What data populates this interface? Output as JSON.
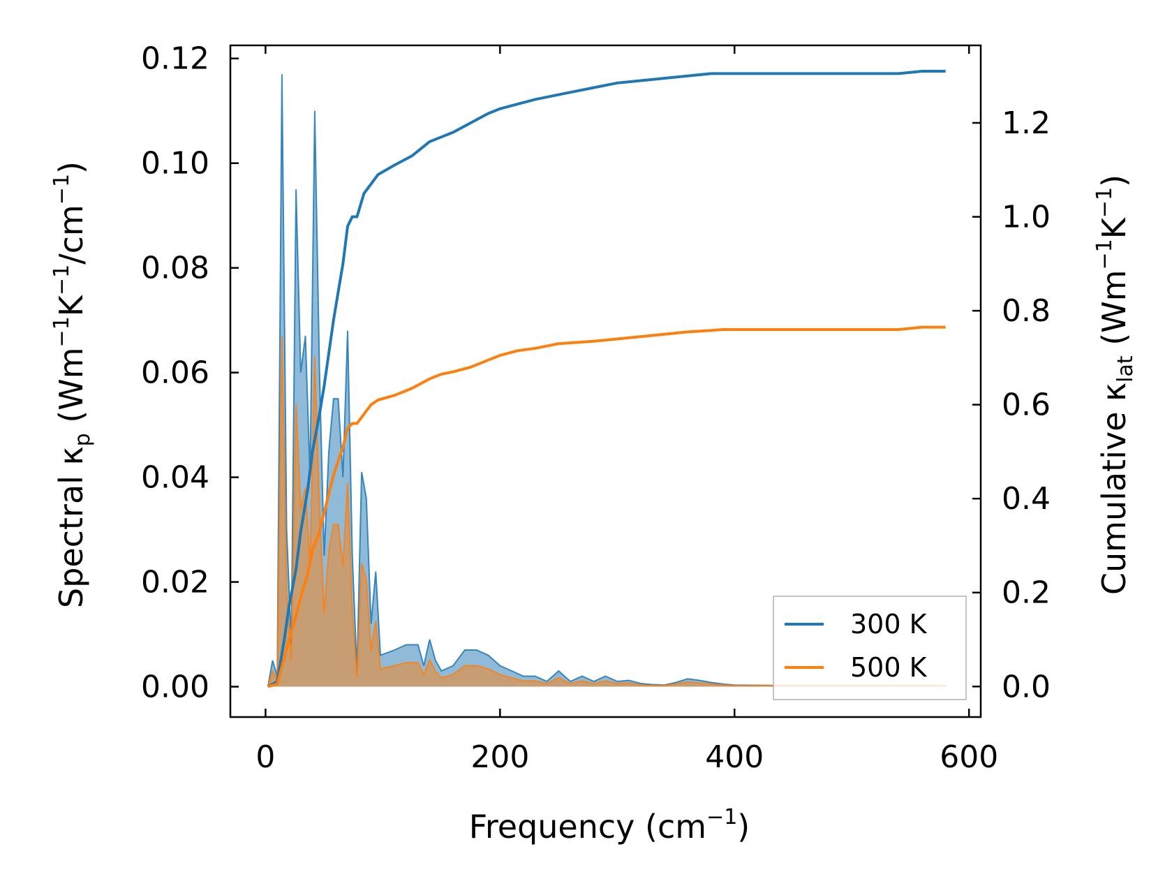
{
  "chart_data": {
    "type": "line",
    "xlabel": {
      "main": "Frequency (cm",
      "sup": "−1",
      "tail": ")"
    },
    "ylabel_left": {
      "a": "Spectral κ",
      "a_sub": "p",
      "b": " (Wm",
      "b_sup": "−1",
      "c": "K",
      "c_sup": "−1",
      "d": "/cm",
      "d_sup": "−1",
      "e": ")"
    },
    "ylabel_right": {
      "a": "Cumulative κ",
      "a_sub": "lat",
      "b": " (Wm",
      "b_sup": "−1",
      "c": "K",
      "c_sup": "−1",
      "d": ")"
    },
    "xlim": [
      -30,
      610
    ],
    "ylim_left": [
      -0.0058,
      0.1225
    ],
    "ylim_right": [
      -0.065,
      1.365
    ],
    "x_ticks": [
      0,
      200,
      400,
      600
    ],
    "x_tick_labels": [
      "0",
      "200",
      "400",
      "600"
    ],
    "y_left_ticks": [
      0,
      0.02,
      0.04,
      0.06,
      0.08,
      0.1,
      0.12
    ],
    "y_left_tick_labels": [
      "0.00",
      "0.02",
      "0.04",
      "0.06",
      "0.08",
      "0.10",
      "0.12"
    ],
    "y_right_ticks": [
      0,
      0.2,
      0.4,
      0.6,
      0.8,
      1.0,
      1.2
    ],
    "y_right_tick_labels": [
      "0.0",
      "0.2",
      "0.4",
      "0.6",
      "0.8",
      "1.0",
      "1.2"
    ],
    "legend": {
      "placement": "lower-right",
      "entries": [
        "300 K",
        "500 K"
      ]
    },
    "colors": {
      "300K": "#1f77b4",
      "500K": "#ff7f0e"
    },
    "series": [
      {
        "name": "300 K",
        "axis": "left",
        "kind": "spectral",
        "x": [
          2,
          6,
          10,
          14,
          18,
          22,
          26,
          30,
          34,
          38,
          42,
          46,
          50,
          54,
          58,
          62,
          66,
          70,
          74,
          78,
          82,
          86,
          90,
          94,
          98,
          110,
          120,
          130,
          135,
          140,
          145,
          150,
          160,
          170,
          180,
          190,
          200,
          210,
          220,
          230,
          240,
          250,
          260,
          270,
          280,
          290,
          300,
          310,
          320,
          330,
          340,
          350,
          360,
          370,
          380,
          390,
          400,
          450,
          500,
          520,
          540,
          560,
          580
        ],
        "y": [
          0,
          0.005,
          0.002,
          0.117,
          0.03,
          0.008,
          0.095,
          0.06,
          0.067,
          0.04,
          0.11,
          0.06,
          0.025,
          0.045,
          0.055,
          0.055,
          0.04,
          0.068,
          0.025,
          0.003,
          0.041,
          0.036,
          0.012,
          0.022,
          0.006,
          0.007,
          0.008,
          0.008,
          0.004,
          0.009,
          0.005,
          0.003,
          0.004,
          0.007,
          0.007,
          0.006,
          0.004,
          0.003,
          0.002,
          0.002,
          0.001,
          0.003,
          0.001,
          0.002,
          0.001,
          0.002,
          0.001,
          0.0012,
          0.0006,
          0.0004,
          0.0003,
          0.0008,
          0.0015,
          0.0012,
          0.0008,
          0.0005,
          0.0003,
          0.0002,
          0.0002,
          0.0002,
          0.0002,
          0.0002,
          0.0002
        ]
      },
      {
        "name": "500 K",
        "axis": "left",
        "kind": "spectral",
        "x": [
          2,
          6,
          10,
          14,
          18,
          22,
          26,
          30,
          34,
          38,
          42,
          46,
          50,
          54,
          58,
          62,
          66,
          70,
          74,
          78,
          82,
          86,
          90,
          94,
          98,
          110,
          120,
          130,
          135,
          140,
          145,
          150,
          160,
          170,
          180,
          190,
          200,
          210,
          220,
          230,
          240,
          250,
          260,
          270,
          280,
          290,
          300,
          310,
          320,
          330,
          340,
          350,
          360,
          370,
          380,
          390,
          400,
          450,
          500,
          520,
          540,
          560,
          580
        ],
        "y": [
          0,
          0.003,
          0.0012,
          0.067,
          0.018,
          0.005,
          0.054,
          0.034,
          0.038,
          0.023,
          0.063,
          0.034,
          0.014,
          0.026,
          0.031,
          0.031,
          0.023,
          0.039,
          0.014,
          0.0017,
          0.0235,
          0.0205,
          0.0068,
          0.0125,
          0.0034,
          0.004,
          0.0046,
          0.0046,
          0.0023,
          0.0051,
          0.0029,
          0.0017,
          0.0023,
          0.004,
          0.004,
          0.0034,
          0.0023,
          0.0017,
          0.0011,
          0.0011,
          0.0006,
          0.0017,
          0.0006,
          0.0011,
          0.0006,
          0.0011,
          0.0006,
          0.0007,
          0.0003,
          0.0002,
          0.0002,
          0.0005,
          0.0009,
          0.0007,
          0.0005,
          0.0003,
          0.0002,
          0.0002,
          0.0002,
          0.0002,
          0.0002,
          0.0002,
          0.0002
        ]
      },
      {
        "name": "300 K",
        "axis": "right",
        "kind": "cumulative",
        "x": [
          2,
          10,
          16,
          20,
          26,
          30,
          36,
          40,
          46,
          50,
          54,
          58,
          62,
          66,
          70,
          74,
          78,
          84,
          90,
          96,
          110,
          125,
          140,
          150,
          160,
          175,
          190,
          200,
          215,
          230,
          250,
          280,
          300,
          320,
          340,
          360,
          380,
          390,
          400,
          450,
          500,
          540,
          560,
          580
        ],
        "y": [
          0,
          0.01,
          0.1,
          0.17,
          0.25,
          0.33,
          0.42,
          0.5,
          0.58,
          0.64,
          0.71,
          0.78,
          0.84,
          0.9,
          0.98,
          1.0,
          1.0,
          1.05,
          1.07,
          1.09,
          1.11,
          1.13,
          1.16,
          1.17,
          1.18,
          1.2,
          1.22,
          1.23,
          1.24,
          1.25,
          1.26,
          1.275,
          1.285,
          1.29,
          1.295,
          1.3,
          1.305,
          1.305,
          1.305,
          1.305,
          1.305,
          1.305,
          1.31,
          1.31
        ]
      },
      {
        "name": "500 K",
        "axis": "right",
        "kind": "cumulative",
        "x": [
          2,
          10,
          16,
          20,
          26,
          30,
          36,
          40,
          46,
          50,
          54,
          58,
          62,
          66,
          70,
          74,
          78,
          84,
          90,
          96,
          110,
          125,
          140,
          150,
          160,
          175,
          190,
          200,
          215,
          230,
          250,
          280,
          300,
          320,
          340,
          360,
          380,
          390,
          400,
          450,
          500,
          540,
          560,
          580
        ],
        "y": [
          0,
          0.005,
          0.06,
          0.1,
          0.15,
          0.19,
          0.24,
          0.29,
          0.33,
          0.37,
          0.41,
          0.45,
          0.48,
          0.51,
          0.55,
          0.56,
          0.56,
          0.58,
          0.6,
          0.61,
          0.62,
          0.635,
          0.655,
          0.665,
          0.67,
          0.68,
          0.695,
          0.705,
          0.715,
          0.72,
          0.73,
          0.735,
          0.74,
          0.745,
          0.75,
          0.755,
          0.758,
          0.76,
          0.76,
          0.76,
          0.76,
          0.76,
          0.765,
          0.765
        ]
      }
    ]
  }
}
